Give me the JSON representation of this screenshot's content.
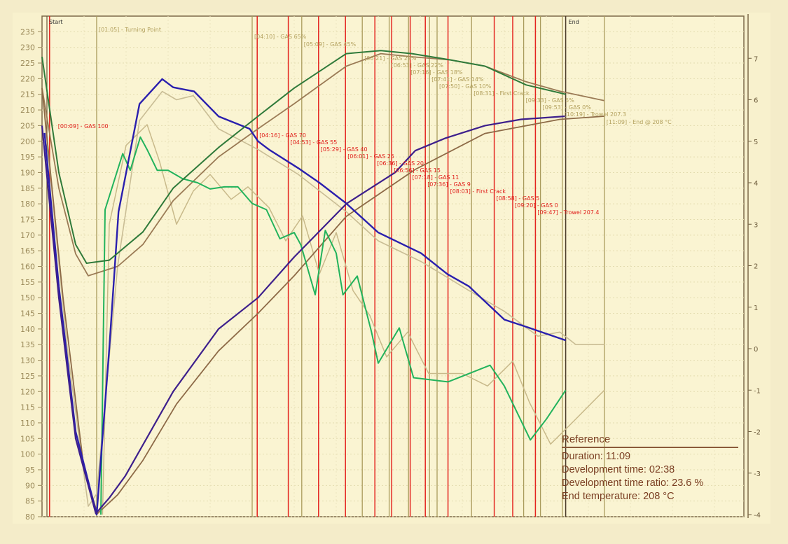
{
  "chart_data": {
    "type": "line",
    "title": "",
    "xlabel": "",
    "ylabel": "",
    "ylim": [
      80,
      240
    ],
    "y_ticks": [
      80,
      85,
      90,
      95,
      100,
      105,
      110,
      115,
      120,
      125,
      130,
      135,
      140,
      145,
      150,
      155,
      160,
      165,
      170,
      175,
      180,
      185,
      190,
      195,
      200,
      205,
      210,
      215,
      220,
      225,
      230,
      235
    ],
    "y2lim": [
      -4,
      8
    ],
    "y2_ticks": [
      -4,
      -3,
      -2,
      -1,
      0,
      1,
      2,
      3,
      4,
      5,
      6,
      7
    ],
    "grid": true,
    "start_label": "Start",
    "end_label": "End",
    "end_time": "10:23",
    "colors": {
      "bt_current": "#3d1f8c",
      "bt_reference": "#8d6a47",
      "et_current": "#2f7a3a",
      "et_reference": "#9a7a55",
      "ror_current": "#2a1fae",
      "ror_reference": "#c9bd95",
      "aux_current": "#22b35c",
      "aux_reference": "#c8b98a",
      "event_current": "#e4241f",
      "event_reference": "#a99b5c"
    },
    "series": [
      {
        "key": "bt_current",
        "axis": "left",
        "points": [
          [
            "00:00",
            205
          ],
          [
            "00:20",
            150
          ],
          [
            "00:40",
            105
          ],
          [
            "01:04",
            81
          ],
          [
            "01:20",
            86
          ],
          [
            "01:39",
            93
          ],
          [
            "02:36",
            120
          ],
          [
            "03:30",
            140
          ],
          [
            "04:17",
            150
          ],
          [
            "05:00",
            163
          ],
          [
            "06:02",
            180
          ],
          [
            "07:00",
            190
          ],
          [
            "07:24",
            197
          ],
          [
            "08:00",
            201
          ],
          [
            "08:47",
            205
          ],
          [
            "09:30",
            207
          ],
          [
            "10:23",
            208
          ]
        ]
      },
      {
        "key": "bt_reference",
        "axis": "left",
        "points": [
          [
            "00:00",
            217
          ],
          [
            "00:25",
            150
          ],
          [
            "00:50",
            95
          ],
          [
            "01:06",
            81
          ],
          [
            "01:30",
            87
          ],
          [
            "02:00",
            98
          ],
          [
            "02:40",
            116
          ],
          [
            "03:30",
            133
          ],
          [
            "04:17",
            145
          ],
          [
            "05:00",
            157
          ],
          [
            "06:02",
            176
          ],
          [
            "07:24",
            191
          ],
          [
            "08:47",
            202.5
          ],
          [
            "10:16",
            207
          ],
          [
            "11:09",
            208
          ]
        ]
      },
      {
        "key": "et_current",
        "axis": "left",
        "points": [
          [
            "00:00",
            227
          ],
          [
            "00:20",
            190
          ],
          [
            "00:40",
            167
          ],
          [
            "00:53",
            161
          ],
          [
            "01:20",
            162
          ],
          [
            "02:00",
            171
          ],
          [
            "02:36",
            185
          ],
          [
            "03:30",
            198
          ],
          [
            "04:17",
            208
          ],
          [
            "05:00",
            217
          ],
          [
            "06:02",
            228
          ],
          [
            "06:43",
            229
          ],
          [
            "07:20",
            228
          ],
          [
            "08:06",
            226
          ],
          [
            "08:47",
            224
          ],
          [
            "09:36",
            218
          ],
          [
            "10:23",
            215
          ]
        ]
      },
      {
        "key": "et_reference",
        "axis": "left",
        "points": [
          [
            "00:00",
            217
          ],
          [
            "00:20",
            185
          ],
          [
            "00:40",
            164
          ],
          [
            "00:55",
            157
          ],
          [
            "01:30",
            160
          ],
          [
            "02:00",
            167
          ],
          [
            "02:36",
            181
          ],
          [
            "03:30",
            195
          ],
          [
            "04:17",
            204
          ],
          [
            "05:00",
            212
          ],
          [
            "06:02",
            224
          ],
          [
            "06:43",
            228
          ],
          [
            "07:20",
            227
          ],
          [
            "08:06",
            226
          ],
          [
            "08:47",
            224
          ],
          [
            "09:36",
            219
          ],
          [
            "10:16",
            216
          ],
          [
            "11:09",
            213
          ]
        ]
      },
      {
        "key": "ror_current",
        "axis": "right",
        "points": [
          [
            "00:03",
            5.2
          ],
          [
            "00:20",
            1.5
          ],
          [
            "00:40",
            -2
          ],
          [
            "01:05",
            -4
          ],
          [
            "01:20",
            0
          ],
          [
            "01:31",
            3.3
          ],
          [
            "01:56",
            5.9
          ],
          [
            "02:23",
            6.5
          ],
          [
            "02:36",
            6.3
          ],
          [
            "03:01",
            6.2
          ],
          [
            "03:30",
            5.6
          ],
          [
            "04:07",
            5.3
          ],
          [
            "04:17",
            5.0
          ],
          [
            "04:30",
            4.8
          ],
          [
            "05:05",
            4.35
          ],
          [
            "05:30",
            4.0
          ],
          [
            "06:02",
            3.5
          ],
          [
            "06:40",
            2.8
          ],
          [
            "07:31",
            2.3
          ],
          [
            "08:02",
            1.8
          ],
          [
            "08:28",
            1.5
          ],
          [
            "09:10",
            0.7
          ],
          [
            "09:40",
            0.5
          ],
          [
            "10:23",
            0.2
          ]
        ]
      },
      {
        "key": "ror_reference",
        "axis": "right",
        "points": [
          [
            "00:03",
            5.6
          ],
          [
            "00:30",
            0
          ],
          [
            "00:55",
            -3.8
          ],
          [
            "01:05",
            -3.5
          ],
          [
            "01:30",
            2
          ],
          [
            "01:56",
            5.5
          ],
          [
            "02:23",
            6.2
          ],
          [
            "02:40",
            6.0
          ],
          [
            "03:00",
            6.1
          ],
          [
            "03:30",
            5.3
          ],
          [
            "04:17",
            4.8
          ],
          [
            "05:05",
            4.2
          ],
          [
            "06:02",
            3.3
          ],
          [
            "06:40",
            2.6
          ],
          [
            "07:31",
            2.1
          ],
          [
            "08:28",
            1.4
          ],
          [
            "09:10",
            0.9
          ],
          [
            "09:50",
            0.3
          ],
          [
            "10:16",
            0.4
          ],
          [
            "10:35",
            0.1
          ],
          [
            "11:09",
            0.1
          ]
        ]
      },
      {
        "key": "aux_current",
        "axis": "right",
        "points": [
          [
            "01:10",
            -4
          ],
          [
            "01:15",
            3.35
          ],
          [
            "01:36",
            4.7
          ],
          [
            "01:45",
            4.3
          ],
          [
            "01:57",
            5.1
          ],
          [
            "02:05",
            4.8
          ],
          [
            "02:17",
            4.3
          ],
          [
            "02:30",
            4.3
          ],
          [
            "02:47",
            4.1
          ],
          [
            "03:05",
            4.0
          ],
          [
            "03:20",
            3.85
          ],
          [
            "03:37",
            3.9
          ],
          [
            "03:53",
            3.9
          ],
          [
            "04:10",
            3.5
          ],
          [
            "04:27",
            3.35
          ],
          [
            "04:43",
            2.65
          ],
          [
            "05:00",
            2.8
          ],
          [
            "05:08",
            2.5
          ],
          [
            "05:25",
            1.3
          ],
          [
            "05:37",
            2.85
          ],
          [
            "05:50",
            2.3
          ],
          [
            "05:58",
            1.3
          ],
          [
            "06:15",
            1.75
          ],
          [
            "06:32",
            0.4
          ],
          [
            "06:40",
            -0.35
          ],
          [
            "07:05",
            0.5
          ],
          [
            "07:22",
            -0.7
          ],
          [
            "08:03",
            -0.8
          ],
          [
            "08:53",
            -0.4
          ],
          [
            "09:10",
            -0.9
          ],
          [
            "09:41",
            -2.2
          ],
          [
            "10:00",
            -1.7
          ],
          [
            "10:23",
            -1.0
          ]
        ]
      },
      {
        "key": "aux_reference",
        "axis": "right",
        "points": [
          [
            "01:12",
            -4
          ],
          [
            "01:20",
            3.0
          ],
          [
            "01:40",
            4.9
          ],
          [
            "02:05",
            5.4
          ],
          [
            "02:20",
            4.5
          ],
          [
            "02:40",
            3.0
          ],
          [
            "03:00",
            3.8
          ],
          [
            "03:20",
            4.2
          ],
          [
            "03:45",
            3.6
          ],
          [
            "04:05",
            3.9
          ],
          [
            "04:30",
            3.4
          ],
          [
            "04:50",
            2.6
          ],
          [
            "05:10",
            3.2
          ],
          [
            "05:30",
            1.8
          ],
          [
            "05:50",
            2.8
          ],
          [
            "06:10",
            1.4
          ],
          [
            "06:30",
            0.8
          ],
          [
            "06:50",
            -0.2
          ],
          [
            "07:15",
            0.4
          ],
          [
            "07:40",
            -0.6
          ],
          [
            "08:20",
            -0.6
          ],
          [
            "08:50",
            -0.9
          ],
          [
            "09:20",
            -0.3
          ],
          [
            "09:40",
            -1.3
          ],
          [
            "10:05",
            -2.3
          ],
          [
            "10:30",
            -1.8
          ],
          [
            "11:09",
            -1.0
          ]
        ]
      }
    ],
    "events_current": [
      {
        "time": "00:09",
        "label": "[00:09] - GAS 100"
      },
      {
        "time": "04:16",
        "label": "[04:16] - GAS 70"
      },
      {
        "time": "04:53",
        "label": "[04:53] - GAS 55"
      },
      {
        "time": "05:29",
        "label": "[05:29] - GAS 40"
      },
      {
        "time": "06:01",
        "label": "[06:01] - GAS 25"
      },
      {
        "time": "06:36",
        "label": "[06:36] - GAS 20"
      },
      {
        "time": "06:56",
        "label": "[06:56] - GAS 15"
      },
      {
        "time": "07:18",
        "label": "[07:18] - GAS 11"
      },
      {
        "time": "07:36",
        "label": "[07:36] - GAS 9"
      },
      {
        "time": "08:03",
        "label": "[08:03] - First Crack"
      },
      {
        "time": "08:58",
        "label": "[08:58] - GAS 5"
      },
      {
        "time": "09:20",
        "label": "[09:20] - GAS 0"
      },
      {
        "time": "09:47",
        "label": "[09:47] - Trowel 207.4"
      }
    ],
    "events_reference": [
      {
        "time": "01:05",
        "label": "[01:05] - Turning Point"
      },
      {
        "time": "04:10",
        "label": "[04:10] - GAS 65%"
      },
      {
        "time": "05:09",
        "label": "[05:09] - GAS 45%"
      },
      {
        "time": "06:21",
        "label": "[06:21] - GAS 29%"
      },
      {
        "time": "06:53",
        "label": "[06:53] - GAS 22%"
      },
      {
        "time": "07:16",
        "label": "[07:16] - GAS 18%"
      },
      {
        "time": "07:41",
        "label": "[07:41] - GAS 14%"
      },
      {
        "time": "07:50",
        "label": "[07:50] - GAS 10%"
      },
      {
        "time": "08:31",
        "label": "[08:31] - First Crack"
      },
      {
        "time": "09:33",
        "label": "[09:33] - GAS 5%"
      },
      {
        "time": "09:53",
        "label": "[09:53] - GAS 0%"
      },
      {
        "time": "10:19",
        "label": "[10:19] - Trowel 207.3"
      },
      {
        "time": "11:09",
        "label": "[11:09] - End @ 208 °C"
      }
    ]
  },
  "reference_box": {
    "title": "Reference",
    "duration": "Duration: 11:09",
    "development_time": "Development time: 02:38",
    "development_ratio": "Development time ratio: 23.6 %",
    "end_temperature": "End temperature: 208 °C"
  }
}
